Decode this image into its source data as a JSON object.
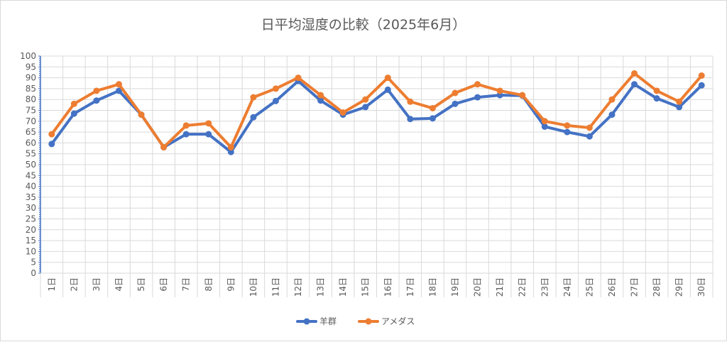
{
  "chart_data": {
    "type": "line",
    "title": "日平均湿度の比較（2025年6月）",
    "xlabel": "",
    "ylabel": "",
    "ylim": [
      0,
      100
    ],
    "yticks": [
      0,
      5,
      10,
      15,
      20,
      25,
      30,
      35,
      40,
      45,
      50,
      55,
      60,
      65,
      70,
      75,
      80,
      85,
      90,
      95,
      100
    ],
    "categories": [
      "1日",
      "2日",
      "3日",
      "4日",
      "5日",
      "6日",
      "7日",
      "8日",
      "9日",
      "10日",
      "11日",
      "12日",
      "13日",
      "14日",
      "15日",
      "16日",
      "17日",
      "18日",
      "19日",
      "20日",
      "21日",
      "22日",
      "23日",
      "24日",
      "25日",
      "26日",
      "27日",
      "28日",
      "29日",
      "30日"
    ],
    "grid": true,
    "legend_position": "bottom",
    "series": [
      {
        "name": "羊群",
        "color": "#4472c4",
        "values": [
          59.5,
          73.5,
          79.5,
          84,
          73,
          58,
          64,
          64,
          55.8,
          71.8,
          79.3,
          88.5,
          79.5,
          73,
          76.5,
          84.5,
          71,
          71.3,
          78,
          81,
          82,
          81.8,
          67.5,
          65,
          63,
          73,
          87,
          80.5,
          76.5,
          86.5
        ]
      },
      {
        "name": "アメダス",
        "color": "#ed7d31",
        "values": [
          64,
          78,
          84,
          87,
          73,
          58,
          68,
          69,
          58,
          81,
          85,
          90,
          82,
          74,
          80,
          90,
          79,
          76,
          83,
          87,
          84,
          82,
          70,
          68,
          67,
          80,
          92,
          84,
          79,
          91
        ]
      }
    ]
  }
}
